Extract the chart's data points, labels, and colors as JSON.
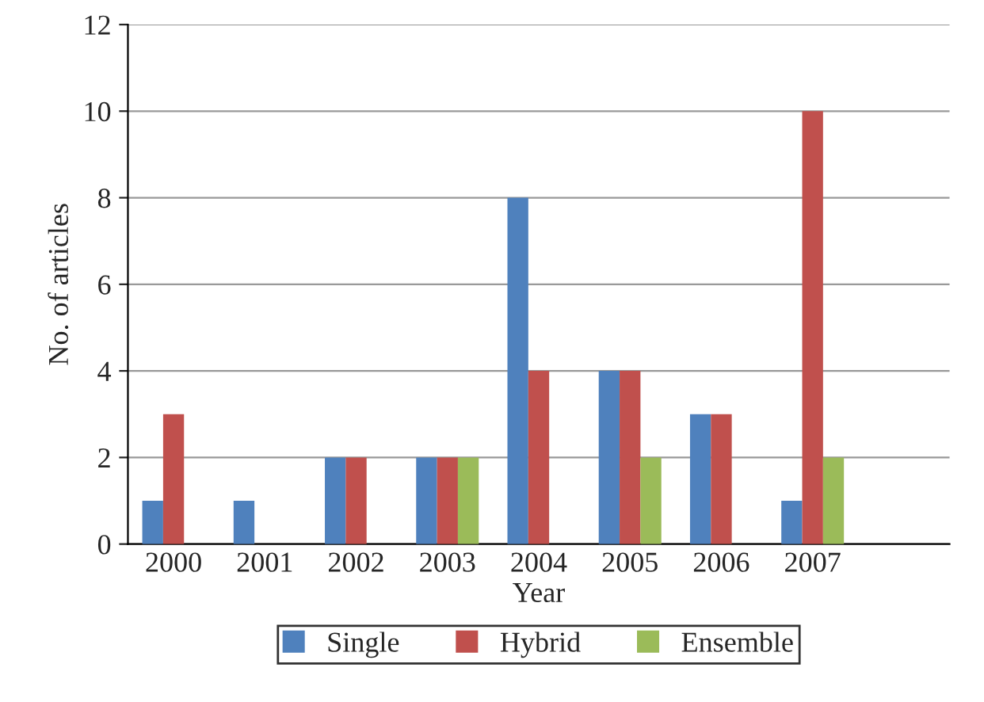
{
  "chart_data": {
    "type": "bar",
    "xlabel": "Year",
    "ylabel": "No. of articles",
    "categories": [
      "2000",
      "2001",
      "2002",
      "2003",
      "2004",
      "2005",
      "2006",
      "2007",
      null
    ],
    "series": [
      {
        "name": "Single",
        "color": "#4f81bd",
        "values": [
          1,
          1,
          2,
          2,
          8,
          4,
          3,
          1,
          null
        ]
      },
      {
        "name": "Hybrid",
        "color": "#c0504d",
        "values": [
          3,
          null,
          2,
          2,
          4,
          4,
          3,
          10,
          null
        ]
      },
      {
        "name": "Ensemble",
        "color": "#9bbb59",
        "values": [
          null,
          null,
          null,
          2,
          null,
          2,
          null,
          2,
          null
        ]
      }
    ],
    "ylim": [
      0,
      12
    ],
    "yticks": [
      0,
      2,
      4,
      6,
      8,
      10,
      12
    ],
    "grid": "y",
    "legend": "bottom"
  }
}
